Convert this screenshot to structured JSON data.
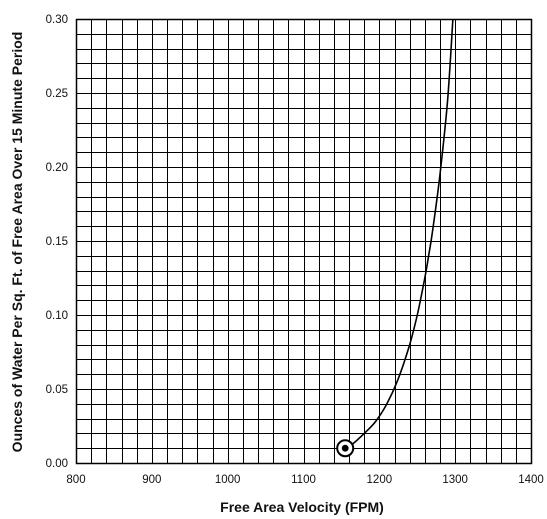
{
  "chart_data": {
    "type": "line",
    "title": "",
    "xlabel": "Free Area Velocity (FPM)",
    "ylabel": "Ounces of Water Per Sq. Ft. of Free Area Over 15 Minute Period",
    "xlim": [
      800,
      1400
    ],
    "ylim": [
      0,
      0.3
    ],
    "x_ticks": [
      "800",
      "900",
      "1000",
      "1100",
      "1200",
      "1300",
      "1400"
    ],
    "y_ticks": [
      "0.00",
      "0.05",
      "0.10",
      "0.15",
      "0.20",
      "0.25",
      "0.30"
    ],
    "grid": true,
    "grid_minor_x_step": 20,
    "grid_minor_y_step": 0.01,
    "series": [
      {
        "x": [
          1155,
          1165,
          1180,
          1195,
          1210,
          1225,
          1240,
          1250,
          1260,
          1265,
          1270,
          1280,
          1290,
          1297
        ],
        "y": [
          0.01,
          0.013,
          0.02,
          0.028,
          0.04,
          0.057,
          0.08,
          0.1,
          0.125,
          0.14,
          0.156,
          0.195,
          0.245,
          0.3
        ]
      }
    ],
    "marker": {
      "x": 1155,
      "y": 0.01,
      "shape": "bullseye"
    },
    "line_color": "#000000",
    "grid_color": "#000000"
  }
}
